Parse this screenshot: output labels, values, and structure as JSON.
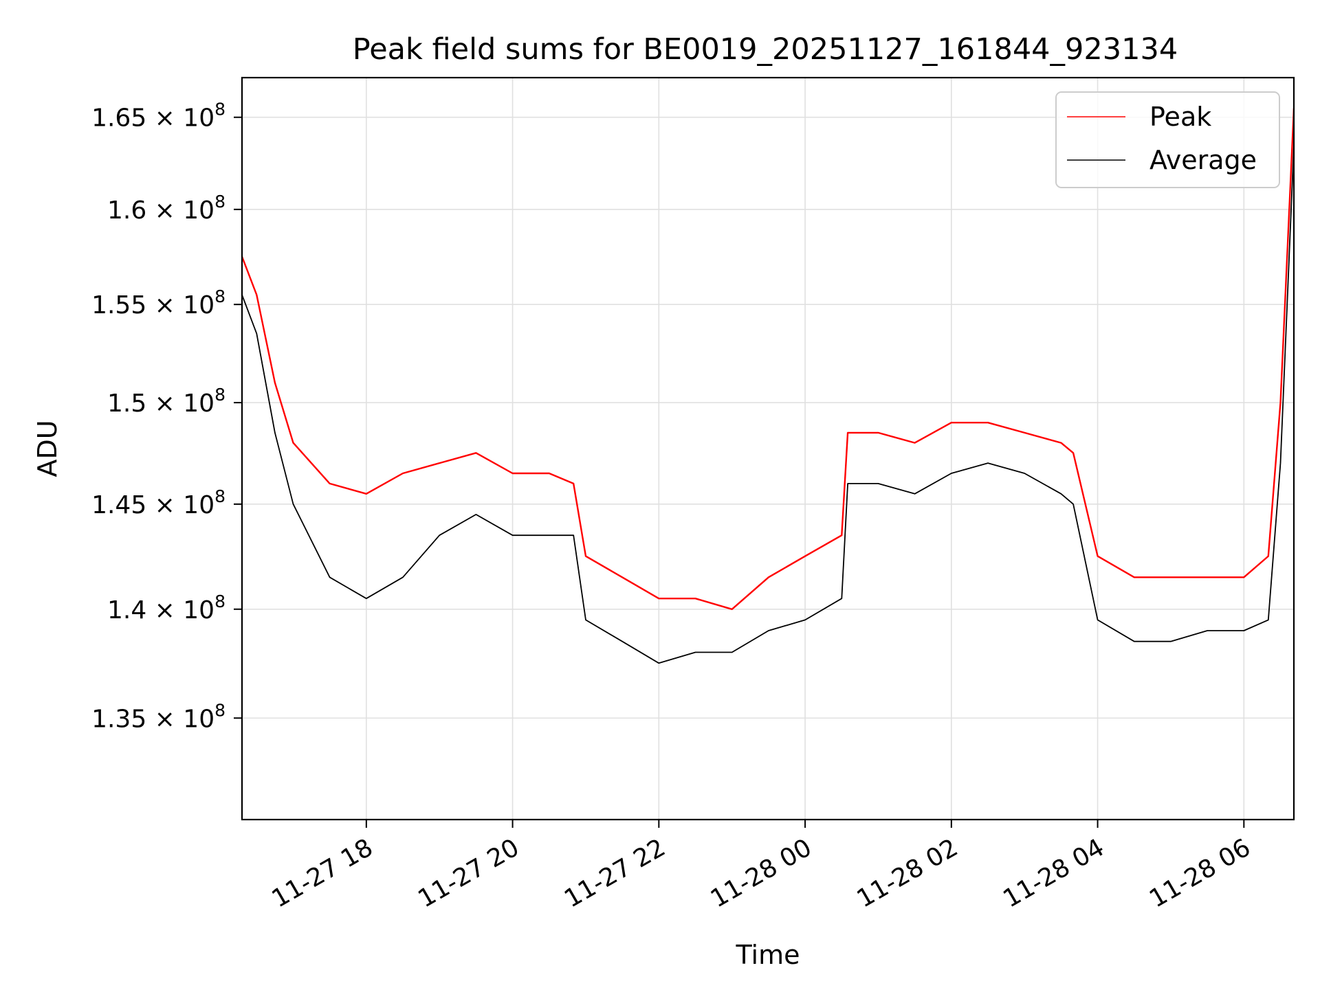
{
  "chart_data": {
    "type": "line",
    "title": "Peak field sums for BE0019_20251127_161844_923134",
    "xlabel": "Time",
    "ylabel": "ADU",
    "y_scale": "log",
    "grid": true,
    "legend_position": "top-right",
    "x_range": [
      "2025-11-27 16:18",
      "2025-11-28 06:41"
    ],
    "ylim": [
      130500000,
      167200000
    ],
    "x_ticks": [
      {
        "value": "2025-11-27 18:00",
        "label": "11-27 18"
      },
      {
        "value": "2025-11-27 20:00",
        "label": "11-27 20"
      },
      {
        "value": "2025-11-27 22:00",
        "label": "11-27 22"
      },
      {
        "value": "2025-11-28 00:00",
        "label": "11-28 00"
      },
      {
        "value": "2025-11-28 02:00",
        "label": "11-28 02"
      },
      {
        "value": "2025-11-28 04:00",
        "label": "11-28 04"
      },
      {
        "value": "2025-11-28 06:00",
        "label": "11-28 06"
      }
    ],
    "y_ticks": [
      {
        "value": 135000000,
        "mantissa": "1.35",
        "exponent": "8"
      },
      {
        "value": 140000000,
        "mantissa": "1.4",
        "exponent": "8"
      },
      {
        "value": 145000000,
        "mantissa": "1.45",
        "exponent": "8"
      },
      {
        "value": 150000000,
        "mantissa": "1.5",
        "exponent": "8"
      },
      {
        "value": 155000000,
        "mantissa": "1.55",
        "exponent": "8"
      },
      {
        "value": 160000000,
        "mantissa": "1.6",
        "exponent": "8"
      },
      {
        "value": 165000000,
        "mantissa": "1.65",
        "exponent": "8"
      }
    ],
    "series": [
      {
        "name": "Peak",
        "color": "#ff0000",
        "x": [
          "2025-11-27 16:18",
          "2025-11-27 16:30",
          "2025-11-27 16:45",
          "2025-11-27 17:00",
          "2025-11-27 17:30",
          "2025-11-27 18:00",
          "2025-11-27 18:30",
          "2025-11-27 19:00",
          "2025-11-27 19:30",
          "2025-11-27 20:00",
          "2025-11-27 20:30",
          "2025-11-27 20:50",
          "2025-11-27 21:00",
          "2025-11-27 21:30",
          "2025-11-27 22:00",
          "2025-11-27 22:30",
          "2025-11-27 23:00",
          "2025-11-27 23:30",
          "2025-11-28 00:00",
          "2025-11-28 00:30",
          "2025-11-28 00:35",
          "2025-11-28 01:00",
          "2025-11-28 01:30",
          "2025-11-28 02:00",
          "2025-11-28 02:30",
          "2025-11-28 03:00",
          "2025-11-28 03:30",
          "2025-11-28 03:40",
          "2025-11-28 04:00",
          "2025-11-28 04:30",
          "2025-11-28 05:00",
          "2025-11-28 05:30",
          "2025-11-28 06:00",
          "2025-11-28 06:20",
          "2025-11-28 06:30",
          "2025-11-28 06:41"
        ],
        "y": [
          157500000,
          155500000,
          151000000,
          148000000,
          146000000,
          145500000,
          146500000,
          147000000,
          147500000,
          146500000,
          146500000,
          146000000,
          142500000,
          141500000,
          140500000,
          140500000,
          140000000,
          141500000,
          142500000,
          143500000,
          148500000,
          148500000,
          148000000,
          149000000,
          149000000,
          148500000,
          148000000,
          147500000,
          142500000,
          141500000,
          141500000,
          141500000,
          141500000,
          142500000,
          150000000,
          165500000
        ]
      },
      {
        "name": "Average",
        "color": "#000000",
        "x": [
          "2025-11-27 16:18",
          "2025-11-27 16:30",
          "2025-11-27 16:45",
          "2025-11-27 17:00",
          "2025-11-27 17:30",
          "2025-11-27 18:00",
          "2025-11-27 18:30",
          "2025-11-27 19:00",
          "2025-11-27 19:30",
          "2025-11-27 20:00",
          "2025-11-27 20:30",
          "2025-11-27 20:50",
          "2025-11-27 21:00",
          "2025-11-27 21:30",
          "2025-11-27 22:00",
          "2025-11-27 22:30",
          "2025-11-27 23:00",
          "2025-11-27 23:30",
          "2025-11-28 00:00",
          "2025-11-28 00:30",
          "2025-11-28 00:35",
          "2025-11-28 01:00",
          "2025-11-28 01:30",
          "2025-11-28 02:00",
          "2025-11-28 02:30",
          "2025-11-28 03:00",
          "2025-11-28 03:30",
          "2025-11-28 03:40",
          "2025-11-28 04:00",
          "2025-11-28 04:30",
          "2025-11-28 05:00",
          "2025-11-28 05:30",
          "2025-11-28 06:00",
          "2025-11-28 06:20",
          "2025-11-28 06:30",
          "2025-11-28 06:41"
        ],
        "y": [
          155500000,
          153500000,
          148500000,
          145000000,
          141500000,
          140500000,
          141500000,
          143500000,
          144500000,
          143500000,
          143500000,
          143500000,
          139500000,
          138500000,
          137500000,
          138000000,
          138000000,
          139000000,
          139500000,
          140500000,
          146000000,
          146000000,
          145500000,
          146500000,
          147000000,
          146500000,
          145500000,
          145000000,
          139500000,
          138500000,
          138500000,
          139000000,
          139000000,
          139500000,
          147000000,
          163500000
        ]
      }
    ]
  }
}
